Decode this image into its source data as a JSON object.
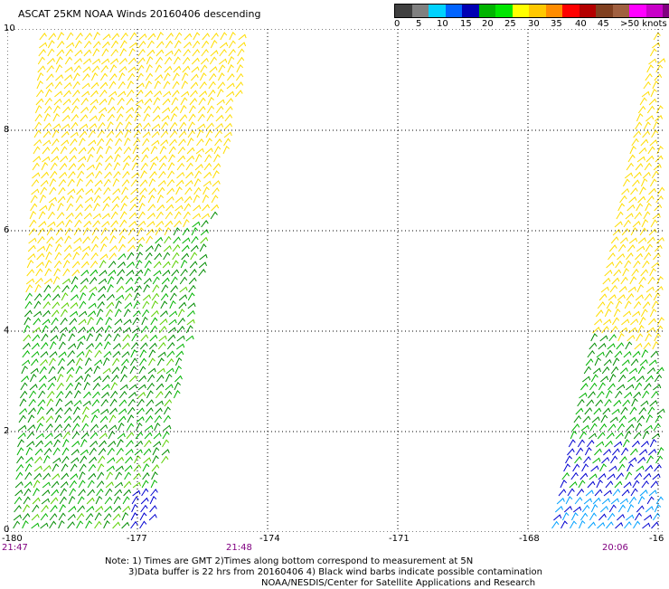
{
  "header": {
    "title": "ASCAT 25KM NOAA Winds 20160406 descending"
  },
  "color_scale": {
    "colors": [
      "#404040",
      "#808080",
      "#00d2ff",
      "#0064ff",
      "#0000b4",
      "#00b400",
      "#00e600",
      "#ffff00",
      "#ffc800",
      "#ff8c00",
      "#ff0000",
      "#b40000",
      "#804020",
      "#a06040",
      "#ff00ff",
      "#c800c8",
      "#800080",
      "#400080"
    ],
    "labels": [
      "0",
      "5",
      "10",
      "15",
      "20",
      "25",
      "30",
      "35",
      "40",
      "45",
      ">50 knots"
    ]
  },
  "axes": {
    "lon_labels": [
      "-180",
      "-177",
      "-174",
      "-171",
      "-168",
      "-16"
    ],
    "lat_labels": [
      "10",
      "8",
      "6",
      "4",
      "2",
      "0"
    ]
  },
  "time_labels": [
    "21:47",
    "21:48",
    "20:06"
  ],
  "notes": [
    "Note: 1) Times are GMT 2)Times along bottom correspond to measurement at 5N",
    "3)Data buffer is 22 hrs from 20160406 4) Black wind barbs indicate possible contamination",
    "NOAA/NESDIS/Center for Satellite Applications and Research"
  ],
  "map_colors": {
    "yellow": "#ffdd00",
    "green_dark": "#008c00",
    "green": "#00b400",
    "green_light": "#5ad000",
    "blue": "#0000d0",
    "cyan": "#00a0ff",
    "grid": "#000000"
  }
}
